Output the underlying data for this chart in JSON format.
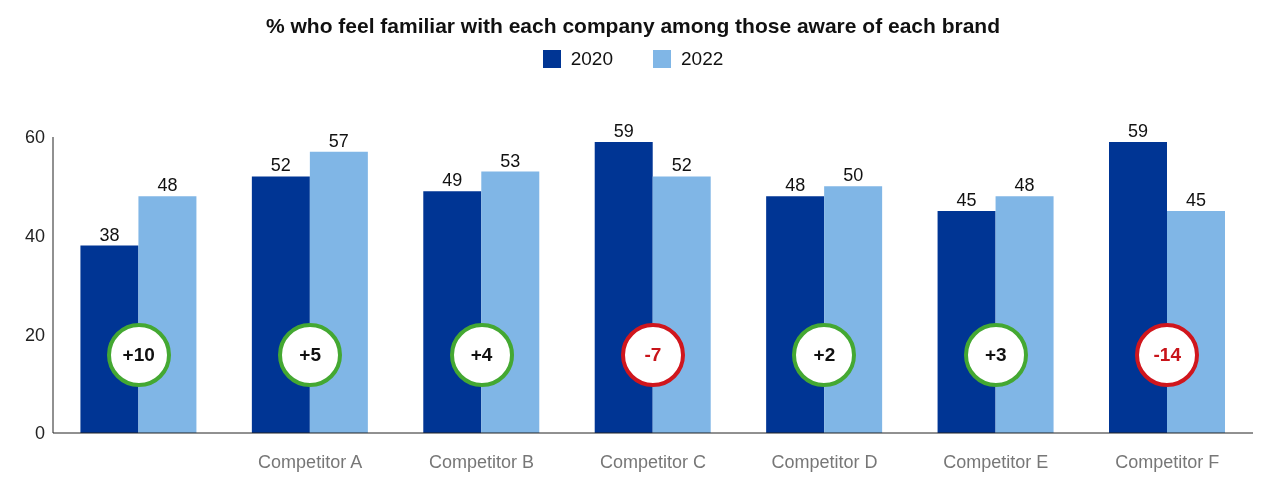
{
  "chart_data": {
    "type": "bar",
    "title": "% who feel familiar with each company among those aware of each brand",
    "categories": [
      null,
      "Competitor A",
      "Competitor B",
      "Competitor C",
      "Competitor D",
      "Competitor E",
      "Competitor F"
    ],
    "series": [
      {
        "name": "2020",
        "color": "#003594",
        "values": [
          38,
          52,
          49,
          59,
          48,
          45,
          59
        ]
      },
      {
        "name": "2022",
        "color": "#80b6e6",
        "values": [
          48,
          57,
          53,
          52,
          50,
          48,
          45
        ]
      }
    ],
    "ylim": [
      0,
      60
    ],
    "yticks": [
      0,
      20,
      40,
      60
    ],
    "grid": false,
    "legend": "top",
    "data_labels": true,
    "annotations": [
      "+10",
      "+5",
      "+4",
      "-7",
      "+2",
      "+3",
      "-14"
    ]
  }
}
